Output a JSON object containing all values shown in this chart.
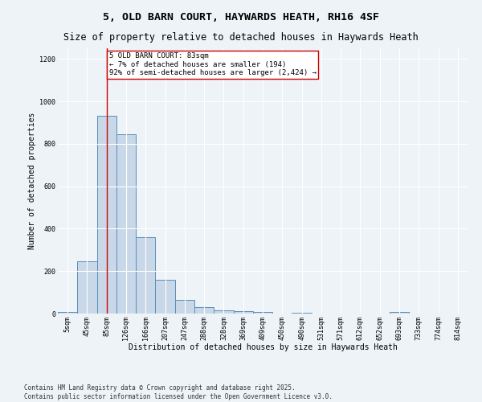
{
  "title1": "5, OLD BARN COURT, HAYWARDS HEATH, RH16 4SF",
  "title2": "Size of property relative to detached houses in Haywards Heath",
  "xlabel": "Distribution of detached houses by size in Haywards Heath",
  "ylabel": "Number of detached properties",
  "bin_labels": [
    "5sqm",
    "45sqm",
    "85sqm",
    "126sqm",
    "166sqm",
    "207sqm",
    "247sqm",
    "288sqm",
    "328sqm",
    "369sqm",
    "409sqm",
    "450sqm",
    "490sqm",
    "531sqm",
    "571sqm",
    "612sqm",
    "652sqm",
    "693sqm",
    "733sqm",
    "774sqm",
    "814sqm"
  ],
  "bar_values": [
    8,
    248,
    930,
    845,
    358,
    160,
    65,
    30,
    15,
    10,
    8,
    0,
    5,
    0,
    0,
    0,
    0,
    8,
    0,
    0,
    0
  ],
  "bar_color": "#c8d8e8",
  "bar_edge_color": "#5b8db8",
  "red_line_bin": 2,
  "annotation_text": "5 OLD BARN COURT: 83sqm\n← 7% of detached houses are smaller (194)\n92% of semi-detached houses are larger (2,424) →",
  "annotation_box_color": "#ffffff",
  "annotation_box_edge": "#cc0000",
  "subject_line_color": "#cc0000",
  "ylim": [
    0,
    1250
  ],
  "yticks": [
    0,
    200,
    400,
    600,
    800,
    1000,
    1200
  ],
  "footer1": "Contains HM Land Registry data © Crown copyright and database right 2025.",
  "footer2": "Contains public sector information licensed under the Open Government Licence v3.0.",
  "bg_color": "#eef3f8",
  "plot_bg_color": "#eef3f8",
  "grid_color": "#ffffff",
  "title1_fontsize": 9.5,
  "title2_fontsize": 8.5,
  "tick_fontsize": 6,
  "label_fontsize": 7,
  "annotation_fontsize": 6.5,
  "footer_fontsize": 5.5
}
